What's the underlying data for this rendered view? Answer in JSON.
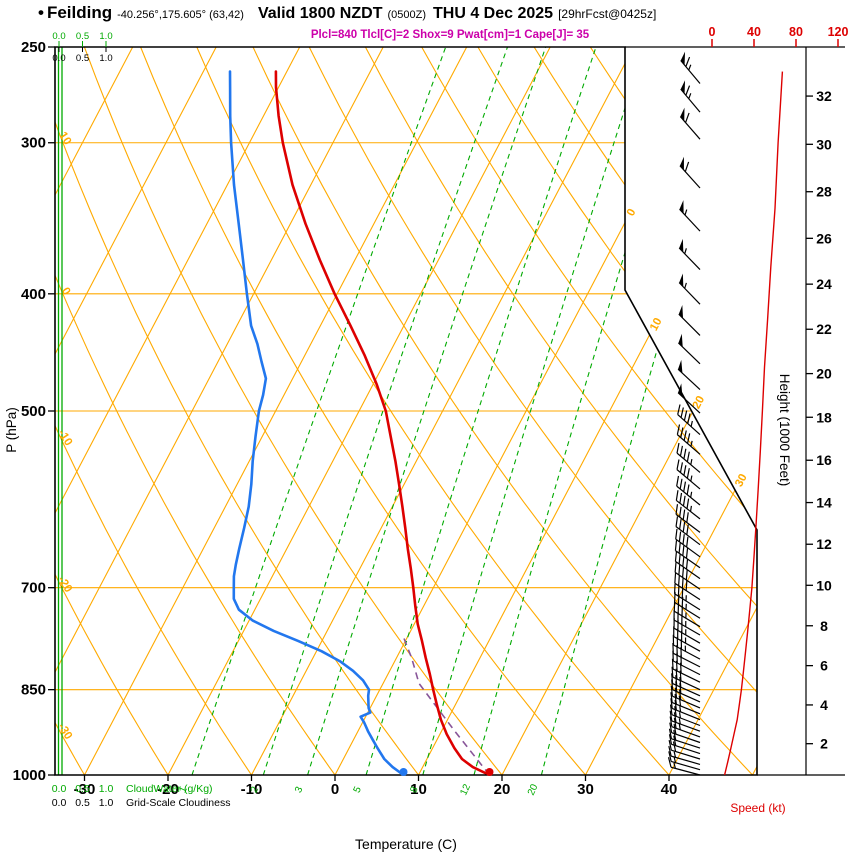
{
  "header": {
    "bullet": "•",
    "station": "Feilding",
    "coords": "-40.256°,175.605° (63,42)",
    "valid_prefix": "Valid 1800 NZDT",
    "valid_z": "(0500Z)",
    "valid_date": "THU 4 Dec 2025",
    "forecast_ref": "[29hrFcst@0425z]",
    "indices": "Plcl=840 Tlcl[C]=2 Shox=9 Pwat[cm]=1 Cape[J]= 35"
  },
  "axis_labels": {
    "pressure": "P (hPa)",
    "temperature": "Temperature (C)",
    "height": "Height (1000 Feet)",
    "speed": "Speed (kt)",
    "cloudwater": "CloudWater (g/Kg)",
    "cloudiness": "Grid-Scale Cloudiness"
  },
  "colors": {
    "grid_orange": "#FFAA00",
    "mixing_green": "#00AA00",
    "cloud_green": "#00AA00",
    "temperature_red": "#DD0000",
    "dewpoint_blue": "#2277EE",
    "parcel_purple": "#885599",
    "speed_red": "#DD0000",
    "indices_magenta": "#CC00AA",
    "barb_black": "#000000"
  },
  "chart_data": {
    "type": "skewt_logp_sounding",
    "pressure_axis": {
      "scale": "log",
      "range": [
        250,
        1000
      ],
      "ticks": [
        250,
        300,
        400,
        500,
        700,
        850,
        1000
      ],
      "unit": "hPa"
    },
    "temperature_axis": {
      "ticks": [
        -30,
        -20,
        -10,
        0,
        10,
        20,
        30,
        40
      ],
      "unit": "C",
      "skewed": true
    },
    "height_axis": {
      "ticks": [
        2,
        4,
        6,
        8,
        10,
        12,
        14,
        16,
        18,
        20,
        22,
        24,
        26,
        28,
        30,
        32
      ],
      "unit": "1000 ft"
    },
    "speed_axis": {
      "ticks": [
        0,
        40,
        80,
        120
      ],
      "unit": "kt"
    },
    "isotherms_c": [
      -80,
      -70,
      -60,
      -50,
      -40,
      -30,
      -20,
      -10,
      0,
      10,
      20,
      30,
      40,
      50
    ],
    "dry_adiabats_theta_c": [
      -40,
      -30,
      -20,
      -10,
      0,
      10,
      20,
      30,
      40,
      50,
      60,
      70,
      80,
      90,
      100,
      110,
      120,
      130
    ],
    "dry_adiabat_labels": [
      10,
      0,
      -10,
      -20,
      -30
    ],
    "isotherm_exit_labels": [
      0,
      10,
      20,
      30
    ],
    "mixing_ratio_lines_gkg": [
      1,
      2,
      3,
      5,
      8,
      12,
      20
    ],
    "cloud_scale_values": [
      "0.0",
      "0.5",
      "1.0"
    ],
    "temperature_profile": [
      [
        1000,
        18.5
      ],
      [
        985,
        16.0
      ],
      [
        970,
        14.2
      ],
      [
        950,
        12.6
      ],
      [
        925,
        10.8
      ],
      [
        900,
        9.2
      ],
      [
        875,
        7.8
      ],
      [
        850,
        6.4
      ],
      [
        825,
        5.0
      ],
      [
        800,
        3.5
      ],
      [
        775,
        2.0
      ],
      [
        750,
        0.4
      ],
      [
        725,
        -1.0
      ],
      [
        700,
        -2.4
      ],
      [
        675,
        -3.9
      ],
      [
        650,
        -5.5
      ],
      [
        625,
        -7.1
      ],
      [
        600,
        -8.8
      ],
      [
        575,
        -10.6
      ],
      [
        550,
        -12.5
      ],
      [
        525,
        -14.6
      ],
      [
        500,
        -16.8
      ],
      [
        475,
        -19.6
      ],
      [
        450,
        -22.8
      ],
      [
        425,
        -26.4
      ],
      [
        400,
        -30.3
      ],
      [
        375,
        -34.2
      ],
      [
        350,
        -38.2
      ],
      [
        325,
        -42.2
      ],
      [
        300,
        -46.0
      ],
      [
        285,
        -48.2
      ],
      [
        270,
        -50.3
      ],
      [
        262,
        -51.3
      ]
    ],
    "dewpoint_profile": [
      [
        1000,
        8.2
      ],
      [
        985,
        6.4
      ],
      [
        970,
        4.9
      ],
      [
        950,
        3.4
      ],
      [
        935,
        2.3
      ],
      [
        920,
        1.2
      ],
      [
        905,
        0.2
      ],
      [
        895,
        -0.6
      ],
      [
        888,
        0.3
      ],
      [
        880,
        -0.2
      ],
      [
        870,
        -0.6
      ],
      [
        860,
        -1.0
      ],
      [
        850,
        -1.3
      ],
      [
        835,
        -2.6
      ],
      [
        820,
        -4.4
      ],
      [
        805,
        -6.6
      ],
      [
        790,
        -9.4
      ],
      [
        775,
        -12.8
      ],
      [
        760,
        -16.4
      ],
      [
        745,
        -19.6
      ],
      [
        730,
        -21.9
      ],
      [
        715,
        -23.2
      ],
      [
        700,
        -23.9
      ],
      [
        685,
        -24.6
      ],
      [
        670,
        -25.1
      ],
      [
        650,
        -25.7
      ],
      [
        625,
        -26.4
      ],
      [
        600,
        -27.2
      ],
      [
        575,
        -28.3
      ],
      [
        550,
        -29.6
      ],
      [
        525,
        -30.8
      ],
      [
        500,
        -32.0
      ],
      [
        485,
        -32.5
      ],
      [
        470,
        -33.2
      ],
      [
        455,
        -34.8
      ],
      [
        440,
        -36.4
      ],
      [
        425,
        -38.3
      ],
      [
        400,
        -40.8
      ],
      [
        375,
        -43.4
      ],
      [
        350,
        -46.2
      ],
      [
        325,
        -49.2
      ],
      [
        300,
        -52.2
      ],
      [
        285,
        -54.0
      ],
      [
        270,
        -55.8
      ],
      [
        262,
        -56.8
      ]
    ],
    "parcel_path": [
      [
        1000,
        18.5
      ],
      [
        920,
        11.6
      ],
      [
        840,
        4.3
      ],
      [
        800,
        1.8
      ],
      [
        770,
        -0.4
      ]
    ],
    "surface_markers": {
      "pressure": 1000,
      "temperature_c": 18.5,
      "dewpoint_c": 8.2
    },
    "wind_speed_profile": [
      [
        1000,
        12
      ],
      [
        975,
        15
      ],
      [
        950,
        18
      ],
      [
        925,
        21
      ],
      [
        900,
        24
      ],
      [
        875,
        26
      ],
      [
        850,
        28
      ],
      [
        820,
        30
      ],
      [
        790,
        32
      ],
      [
        760,
        34
      ],
      [
        730,
        36
      ],
      [
        700,
        38
      ],
      [
        660,
        40
      ],
      [
        620,
        42
      ],
      [
        580,
        44
      ],
      [
        540,
        46
      ],
      [
        500,
        48
      ],
      [
        460,
        50
      ],
      [
        420,
        53
      ],
      [
        380,
        56
      ],
      [
        340,
        60
      ],
      [
        300,
        63
      ],
      [
        280,
        65
      ],
      [
        262,
        67
      ]
    ],
    "wind_barbs": [
      [
        1000,
        285,
        15
      ],
      [
        990,
        286,
        15
      ],
      [
        980,
        286,
        15
      ],
      [
        970,
        287,
        20
      ],
      [
        960,
        288,
        20
      ],
      [
        950,
        288,
        20
      ],
      [
        940,
        289,
        20
      ],
      [
        930,
        290,
        25
      ],
      [
        920,
        290,
        25
      ],
      [
        910,
        291,
        25
      ],
      [
        900,
        292,
        25
      ],
      [
        890,
        292,
        30
      ],
      [
        880,
        293,
        30
      ],
      [
        870,
        294,
        30
      ],
      [
        860,
        294,
        30
      ],
      [
        850,
        295,
        30
      ],
      [
        838,
        296,
        30
      ],
      [
        826,
        297,
        30
      ],
      [
        814,
        297,
        30
      ],
      [
        802,
        298,
        35
      ],
      [
        790,
        299,
        35
      ],
      [
        778,
        300,
        35
      ],
      [
        766,
        300,
        35
      ],
      [
        754,
        301,
        35
      ],
      [
        742,
        302,
        35
      ],
      [
        730,
        302,
        35
      ],
      [
        716,
        303,
        40
      ],
      [
        702,
        304,
        40
      ],
      [
        688,
        305,
        40
      ],
      [
        674,
        305,
        40
      ],
      [
        660,
        306,
        40
      ],
      [
        645,
        307,
        40
      ],
      [
        630,
        307,
        40
      ],
      [
        614,
        308,
        45
      ],
      [
        598,
        309,
        45
      ],
      [
        580,
        310,
        45
      ],
      [
        562,
        310,
        45
      ],
      [
        543,
        311,
        45
      ],
      [
        523,
        312,
        45
      ],
      [
        502,
        313,
        50
      ],
      [
        480,
        313,
        50
      ],
      [
        457,
        314,
        50
      ],
      [
        433,
        315,
        50
      ],
      [
        408,
        316,
        55
      ],
      [
        382,
        316,
        55
      ],
      [
        355,
        317,
        55
      ],
      [
        327,
        318,
        60
      ],
      [
        298,
        319,
        60
      ],
      [
        283,
        320,
        65
      ],
      [
        268,
        320,
        65
      ]
    ]
  }
}
